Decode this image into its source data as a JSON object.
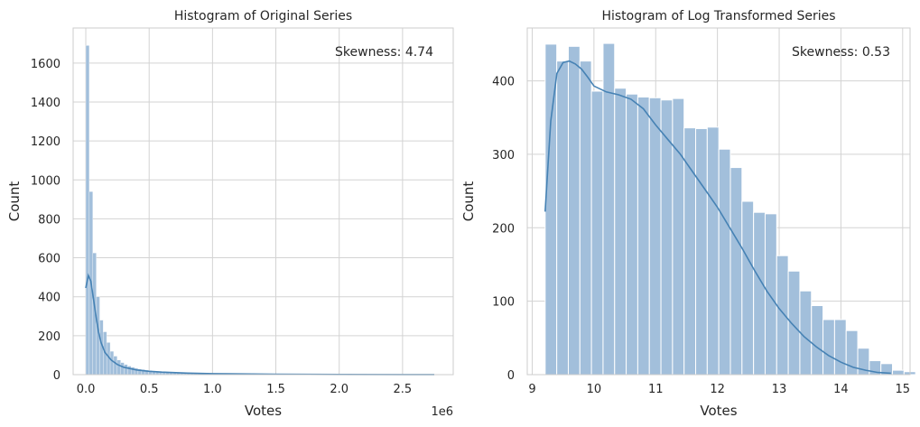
{
  "chart_data": [
    {
      "type": "bar",
      "title": "Histogram of Original Series",
      "xlabel": "Votes",
      "ylabel": "Count",
      "x_offset_label": "1e6",
      "annotation": "Skewness: 4.74",
      "xlim": [
        -0.1,
        2.9
      ],
      "ylim": [
        0,
        1780
      ],
      "xticks": [
        0.0,
        0.5,
        1.0,
        1.5,
        2.0,
        2.5
      ],
      "xtick_labels": [
        "0.0",
        "0.5",
        "1.0",
        "1.5",
        "2.0",
        "2.5"
      ],
      "yticks": [
        0,
        200,
        400,
        600,
        800,
        1000,
        1200,
        1400,
        1600
      ],
      "ytick_labels": [
        "0",
        "200",
        "400",
        "600",
        "800",
        "1000",
        "1200",
        "1400",
        "1600"
      ],
      "bin_width": 0.0275,
      "bin_start": 0.0,
      "values": [
        1690,
        940,
        625,
        400,
        280,
        220,
        165,
        120,
        95,
        75,
        62,
        52,
        44,
        38,
        33,
        29,
        26,
        23,
        21,
        19,
        17,
        15,
        14,
        13,
        12,
        11,
        10,
        9,
        8,
        8,
        7,
        7,
        6,
        6,
        6,
        5,
        5,
        5,
        4,
        4,
        4,
        4,
        3,
        3,
        3,
        3,
        3,
        3,
        2,
        2,
        2,
        2,
        2,
        2,
        2,
        2,
        2,
        2,
        1,
        1,
        1,
        1,
        1,
        1,
        1,
        1,
        1,
        1,
        1,
        1,
        1,
        1,
        1,
        1,
        1,
        1,
        1,
        1,
        1,
        1,
        1,
        1,
        1,
        1,
        1,
        1,
        1,
        1,
        1,
        1,
        1,
        1,
        1,
        1,
        1,
        1,
        1,
        1,
        1,
        1
      ],
      "kde": {
        "x": [
          0.0,
          0.02,
          0.04,
          0.06,
          0.08,
          0.1,
          0.12,
          0.15,
          0.2,
          0.25,
          0.3,
          0.4,
          0.5,
          0.6,
          0.8,
          1.0,
          1.5,
          2.0,
          2.5,
          2.75
        ],
        "y": [
          445,
          510,
          480,
          390,
          300,
          220,
          165,
          115,
          75,
          52,
          38,
          24,
          17,
          13,
          8,
          5,
          2,
          1,
          0.5,
          0.3
        ]
      },
      "bar_color": "#a2bfdb",
      "line_color": "#4682b4"
    },
    {
      "type": "bar",
      "title": "Histogram of Log Transformed Series",
      "xlabel": "Votes",
      "ylabel": "Count",
      "annotation": "Skewness: 0.53",
      "xlim": [
        8.92,
        15.12
      ],
      "ylim": [
        0,
        472
      ],
      "xticks": [
        9,
        10,
        11,
        12,
        13,
        14,
        15
      ],
      "xtick_labels": [
        "9",
        "10",
        "11",
        "12",
        "13",
        "14",
        "15"
      ],
      "yticks": [
        0,
        100,
        200,
        300,
        400
      ],
      "ytick_labels": [
        "0",
        "100",
        "200",
        "300",
        "400"
      ],
      "bin_width": 0.1875,
      "bin_start": 9.21,
      "values": [
        450,
        427,
        447,
        427,
        386,
        451,
        390,
        382,
        378,
        377,
        374,
        376,
        336,
        335,
        337,
        307,
        282,
        236,
        221,
        219,
        162,
        141,
        114,
        94,
        75,
        75,
        60,
        36,
        19,
        15,
        6,
        4
      ],
      "kde": {
        "x": [
          9.21,
          9.3,
          9.4,
          9.5,
          9.6,
          9.7,
          9.8,
          9.9,
          10.0,
          10.2,
          10.4,
          10.6,
          10.8,
          11.0,
          11.2,
          11.4,
          11.6,
          11.8,
          12.0,
          12.2,
          12.4,
          12.6,
          12.8,
          13.0,
          13.2,
          13.4,
          13.6,
          13.8,
          14.0,
          14.2,
          14.4,
          14.6,
          14.81
        ],
        "y": [
          222,
          345,
          410,
          425,
          427,
          423,
          416,
          405,
          393,
          385,
          381,
          375,
          362,
          340,
          320,
          300,
          276,
          252,
          228,
          200,
          172,
          142,
          114,
          90,
          70,
          52,
          38,
          26,
          17,
          10,
          6,
          3,
          2
        ]
      },
      "bar_color": "#a2bfdb",
      "line_color": "#4682b4"
    }
  ]
}
